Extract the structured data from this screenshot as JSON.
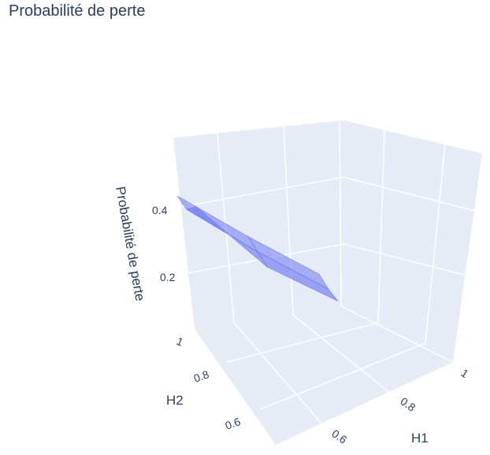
{
  "title": "Probabilité de perte",
  "chart_data": {
    "type": "surface3d",
    "title": "Probabilité de perte",
    "xlabel": "H1",
    "ylabel": "H2",
    "zlabel": "Probabilité de perte",
    "x_ticks": [
      "0.6",
      "0.8",
      "1"
    ],
    "y_ticks": [
      "0.6",
      "0.8",
      "1"
    ],
    "z_ticks": [
      "0.2",
      "0.4"
    ],
    "surface_color": "#6f79f0",
    "background_color": "#e5ecf6",
    "surface": [
      {
        "H1": 0.5,
        "H2": 1.0,
        "p": 0.42
      },
      {
        "H1": 0.5,
        "H2": 0.9,
        "p": 0.39
      },
      {
        "H1": 0.5,
        "H2": 0.8,
        "p": 0.46
      },
      {
        "H1": 0.6,
        "H2": 1.0,
        "p": 0.28
      },
      {
        "H1": 0.6,
        "H2": 0.9,
        "p": 0.24
      },
      {
        "H1": 0.6,
        "H2": 0.8,
        "p": 0.2
      },
      {
        "H1": 0.7,
        "H2": 1.0,
        "p": 0.16
      },
      {
        "H1": 0.7,
        "H2": 0.9,
        "p": 0.12
      },
      {
        "H1": 0.7,
        "H2": 0.8,
        "p": 0.1
      }
    ]
  }
}
